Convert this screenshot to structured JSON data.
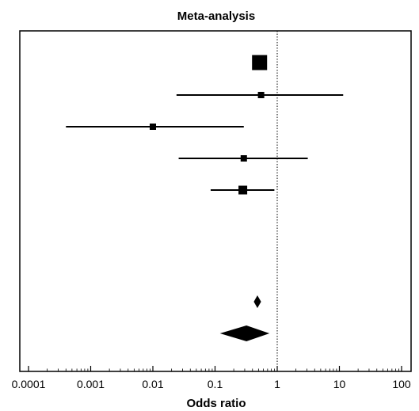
{
  "chart_data": {
    "type": "forest",
    "title": "Meta-analysis",
    "xlabel": "Odds ratio",
    "x_scale": "log",
    "xlim": [
      0.0001,
      100
    ],
    "x_ticks": [
      "0.0001",
      "0.001",
      "0.01",
      "0.1",
      "1",
      "10",
      "100"
    ],
    "reference_line": 1,
    "studies": [
      {
        "estimate": 0.52,
        "lower": null,
        "upper": null,
        "weight": "large"
      },
      {
        "estimate": 0.55,
        "lower": 0.024,
        "upper": 11.5,
        "weight": "small"
      },
      {
        "estimate": 0.01,
        "lower": 0.0004,
        "upper": 0.29,
        "weight": "small"
      },
      {
        "estimate": 0.29,
        "lower": 0.026,
        "upper": 3.1,
        "weight": "small"
      },
      {
        "estimate": 0.28,
        "lower": 0.085,
        "upper": 0.9,
        "weight": "medium"
      }
    ],
    "summaries": [
      {
        "estimate": 0.48,
        "lower": 0.42,
        "upper": 0.55
      },
      {
        "estimate": 0.32,
        "lower": 0.12,
        "upper": 0.75
      }
    ],
    "grid": false,
    "legend": "none"
  }
}
